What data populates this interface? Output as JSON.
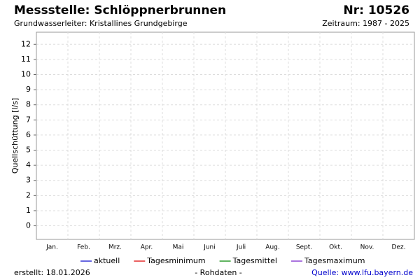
{
  "chart_data": {
    "type": "line",
    "title": "Messstelle: Schlöppnerbrunnen",
    "number": "Nr: 10526",
    "subtitle": "Grundwasserleiter: Kristallines Grundgebirge",
    "period": "Zeitraum: 1987 - 2025",
    "y_label": "Quellschüttung [l/s]",
    "categories": [
      "Jan.",
      "Feb.",
      "Mrz.",
      "Apr.",
      "Mai",
      "Juni",
      "Juli",
      "Aug.",
      "Sept.",
      "Okt.",
      "Nov.",
      "Dez."
    ],
    "series": [
      {
        "name": "aktuell",
        "color": "#0000cc"
      },
      {
        "name": "Tagesminimum",
        "color": "#dd0000"
      },
      {
        "name": "Tagesmittel",
        "color": "#008800"
      },
      {
        "name": "Tagesmaximum",
        "color": "#7722cc"
      }
    ],
    "ylim": [
      -0.9,
      12.8
    ],
    "yticks": [
      0,
      1,
      2,
      3,
      4,
      5,
      6,
      7,
      8,
      9,
      10,
      11,
      12
    ],
    "grid": true,
    "created": "erstellt:  18.01.2026",
    "data_note": "- Rohdaten -",
    "source": "Quelle: www.lfu.bayern.de"
  }
}
